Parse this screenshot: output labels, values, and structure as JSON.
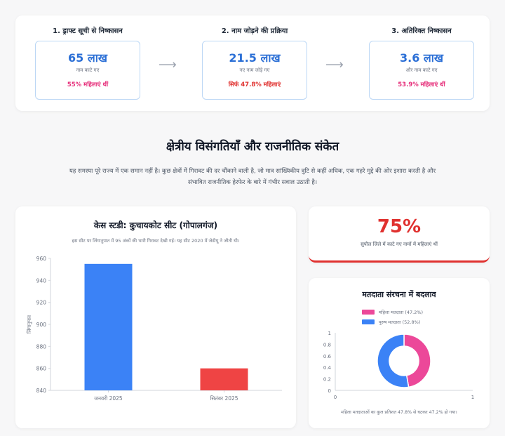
{
  "flow": {
    "steps": [
      {
        "title": "1. ड्राफ्ट सूची से निष्कासन",
        "value": "65 लाख",
        "sub": "नाम काटे गए",
        "note": "55% महिलाएं थीं",
        "note_color": "#e62e7a"
      },
      {
        "title": "2. नाम जोड़ने की प्रक्रिया",
        "value": "21.5 लाख",
        "sub": "नए नाम जोड़े गए",
        "note": "सिर्फ 47.8% महिलाएं",
        "note_color": "#e0312f"
      },
      {
        "title": "3. अतिरिक्त निष्कासन",
        "value": "3.6 लाख",
        "sub": "और नाम काटे गए",
        "note": "53.9% महिलाएं थीं",
        "note_color": "#e62e7a"
      }
    ],
    "arrow": "⟶"
  },
  "section": {
    "title": "क्षेत्रीय विसंगतियाँ और राजनीतिक संकेत",
    "description": "यह समस्या पूरे राज्य में एक समान नहीं है। कुछ क्षेत्रों में गिरावट की दर चौंकाने वाली है, जो मात्र सांख्यिकीय त्रुटि से कहीं अधिक, एक गहरे मुद्दे की ओर इशारा करती है और संभावित राजनीतिक हेरफेर के बारे में गंभीर सवाल उठाती है।"
  },
  "case_study": {
    "title": "केस स्टडी: कुचायकोट सीट (गोपालगंज)",
    "description": "इस सीट पर लिंगानुपात में 95 अंकों की भारी गिरावट देखी गई। यह सीट 2020 में जेडीयू ने जीती थी।"
  },
  "stat": {
    "value": "75%",
    "label": "सुपौल जिले में काटे गए नामों में महिलाएं थीं"
  },
  "composition": {
    "title": "मतदाता संरचना में बदलाव",
    "note": "महिला मतदाताओं का कुल प्रतिशत 47.8% से घटकर 47.2% हो गया।"
  },
  "colors": {
    "blue": "#3b82f6",
    "red": "#ef4444",
    "pink": "#ec4899",
    "accent_red": "#e0312f"
  },
  "chart_data": [
    {
      "type": "bar",
      "title": "केस स्टडी: कुचायकोट सीट (गोपालगंज)",
      "categories": [
        "जनवरी 2025",
        "सितंबर 2025"
      ],
      "values": [
        955,
        860
      ],
      "bar_colors": [
        "#3b82f6",
        "#ef4444"
      ],
      "xlabel": "",
      "ylabel": "लिंगानुपात",
      "ylim": [
        840,
        960
      ],
      "yticks": [
        840,
        860,
        880,
        900,
        920,
        940,
        960
      ],
      "grid": false,
      "legend": "none"
    },
    {
      "type": "pie",
      "title": "मतदाता संरचना में बदलाव",
      "labels": [
        "महिला मतदाता (47.2%)",
        "पुरुष मतदाता (52.8%)"
      ],
      "values": [
        47.2,
        52.8
      ],
      "colors": [
        "#ec4899",
        "#3b82f6"
      ],
      "donut": true,
      "yticks": [
        "0",
        "0.2",
        "0.4",
        "0.6",
        "0.8",
        "1"
      ],
      "xticks": [
        "0",
        "1"
      ],
      "legend": "top"
    }
  ]
}
